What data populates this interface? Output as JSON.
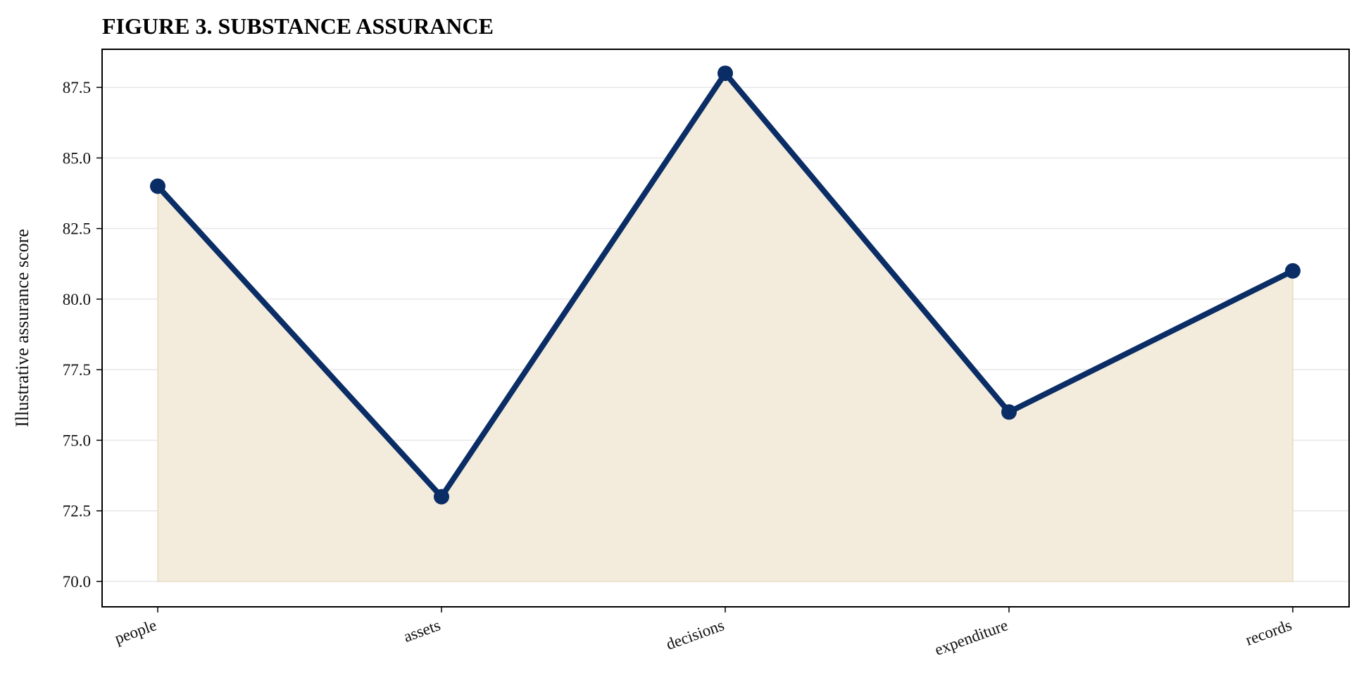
{
  "chart_data": {
    "type": "area",
    "title": "FIGURE 3. SUBSTANCE ASSURANCE",
    "xlabel": "",
    "ylabel": "Illustrative assurance score",
    "categories": [
      "people",
      "assets",
      "decisions",
      "expenditure",
      "records"
    ],
    "series": [
      {
        "values": [
          84,
          73,
          88,
          76,
          81
        ]
      }
    ],
    "ylim": [
      69.1,
      88.85
    ],
    "yticks": [
      "70.0",
      "72.5",
      "75.0",
      "77.5",
      "80.0",
      "82.5",
      "85.0",
      "87.5"
    ],
    "fill_baseline": 70,
    "grid": "horizontal",
    "legend": "none",
    "colors": {
      "line": "#0b2d66",
      "fill": "#f3ecdc",
      "fill_edge": "#e8dcc0",
      "grid": "#e6e6e6"
    }
  }
}
